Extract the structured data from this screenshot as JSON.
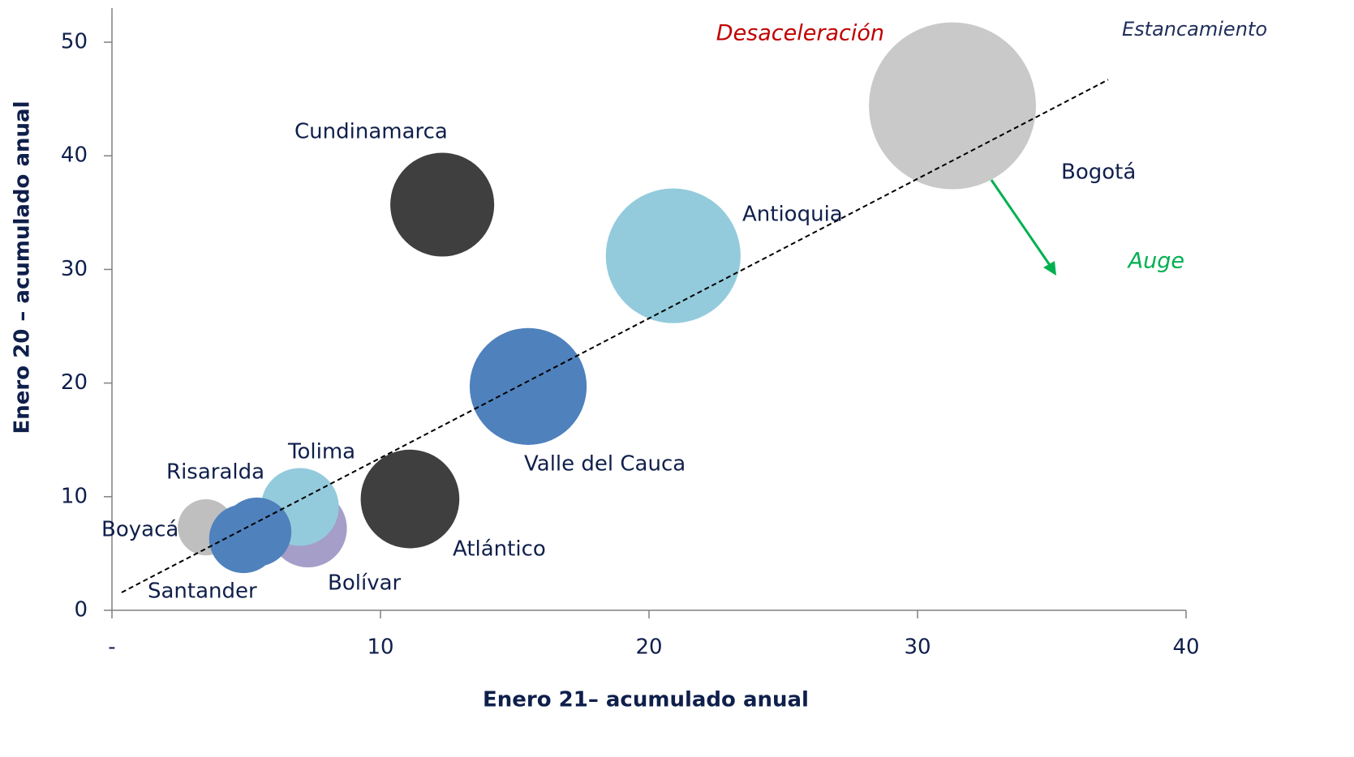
{
  "chart_data": {
    "type": "bubble",
    "xlabel": "Enero 21– acumulado anual",
    "ylabel": "Enero 20 – acumulado anual",
    "xlim": [
      0,
      40
    ],
    "ylim": [
      0,
      53
    ],
    "xticks": [
      {
        "value": 0,
        "label": "-"
      },
      10,
      20,
      30,
      40
    ],
    "yticks": [
      0,
      10,
      20,
      30,
      40,
      50
    ],
    "points": [
      {
        "name": "Bogotá",
        "color": "#c9c9c9",
        "x": 31.3,
        "y": 44.4,
        "size": 106
      },
      {
        "name": "Antioquia",
        "color": "#93cbdc",
        "x": 20.9,
        "y": 31.2,
        "size": 69
      },
      {
        "name": "Cundinamarca",
        "color": "#3f3f3f",
        "x": 12.3,
        "y": 35.7,
        "size": 41
      },
      {
        "name": "Valle del Cauca",
        "color": "#4f81bd",
        "x": 15.5,
        "y": 19.7,
        "size": 52
      },
      {
        "name": "Atlántico",
        "color": "#3f3f3f",
        "x": 11.1,
        "y": 9.8,
        "size": 37
      },
      {
        "name": "Bolívar",
        "color": "#a59ec8",
        "x": 7.3,
        "y": 7.2,
        "size": 23
      },
      {
        "name": "Tolima",
        "color": "#93cbdc",
        "x": 7.0,
        "y": 9.1,
        "size": 23
      },
      {
        "name": "Risaralda",
        "color": "#bfbfbf",
        "x": 3.5,
        "y": 7.3,
        "size": 12
      },
      {
        "name": "Boyacá",
        "color": "#4f81bd",
        "x": 5.4,
        "y": 6.9,
        "size": 18
      },
      {
        "name": "Santander",
        "color": "#4f81bd",
        "x": 4.9,
        "y": 6.3,
        "size": 18
      }
    ],
    "trendline": {
      "x": [
        0.36,
        37.1
      ],
      "y": [
        1.57,
        46.7
      ]
    },
    "annotations": [
      {
        "text": "Desaceleración",
        "color": "#c00000"
      },
      {
        "text": "Estancamiento",
        "color": "#1f2d5a"
      },
      {
        "text": "Auge",
        "color": "#00b050"
      }
    ]
  }
}
